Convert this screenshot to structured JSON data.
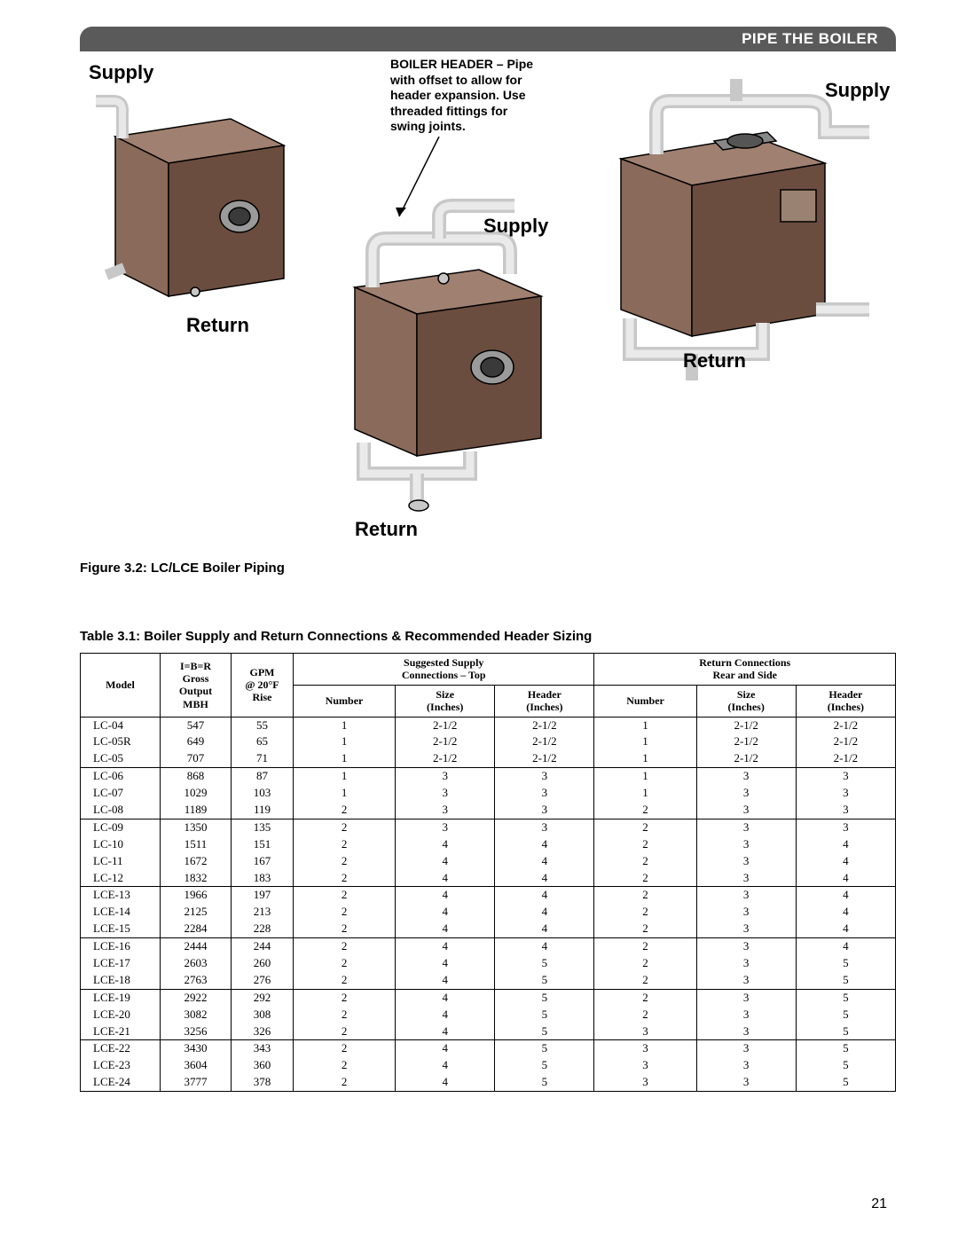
{
  "header": {
    "title": "PIPE THE BOILER"
  },
  "figure": {
    "caption": "Figure 3.2: LC/LCE Boiler Piping",
    "labels": {
      "supply": "Supply",
      "return": "Return",
      "callout_title": "BOILER HEADER –",
      "callout_body": "Pipe with offset to allow for header expansion. Use threaded fittings for swing joints."
    },
    "colors": {
      "boiler_body": "#8a6a5a",
      "boiler_shadow": "#6b4d3f",
      "boiler_top": "#a08070",
      "pipe": "#d8d8d8",
      "pipe_shadow": "#b0b0b0",
      "outline": "#000000"
    }
  },
  "table": {
    "caption": "Table 3.1: Boiler Supply and Return Connections & Recommended Header Sizing",
    "head": {
      "model": "Model",
      "ibr_l1": "I=B=R",
      "ibr_l2": "Gross",
      "ibr_l3": "Output",
      "ibr_l4": "MBH",
      "gpm_l1": "GPM",
      "gpm_l2": "@ 20°F",
      "gpm_l3": "Rise",
      "supply_group": "Suggested Supply",
      "supply_group2": "Connections – Top",
      "return_group": "Return Connections",
      "return_group2": "Rear and Side",
      "number": "Number",
      "size_l1": "Size",
      "size_l2": "(Inches)",
      "header_l1": "Header",
      "header_l2": "(Inches)"
    },
    "groups": [
      [
        [
          "LC-04",
          "547",
          "55",
          "1",
          "2-1/2",
          "2-1/2",
          "1",
          "2-1/2",
          "2-1/2"
        ],
        [
          "LC-05R",
          "649",
          "65",
          "1",
          "2-1/2",
          "2-1/2",
          "1",
          "2-1/2",
          "2-1/2"
        ],
        [
          "LC-05",
          "707",
          "71",
          "1",
          "2-1/2",
          "2-1/2",
          "1",
          "2-1/2",
          "2-1/2"
        ]
      ],
      [
        [
          "LC-06",
          "868",
          "87",
          "1",
          "3",
          "3",
          "1",
          "3",
          "3"
        ],
        [
          "LC-07",
          "1029",
          "103",
          "1",
          "3",
          "3",
          "1",
          "3",
          "3"
        ],
        [
          "LC-08",
          "1189",
          "119",
          "2",
          "3",
          "3",
          "2",
          "3",
          "3"
        ]
      ],
      [
        [
          "LC-09",
          "1350",
          "135",
          "2",
          "3",
          "3",
          "2",
          "3",
          "3"
        ],
        [
          "LC-10",
          "1511",
          "151",
          "2",
          "4",
          "4",
          "2",
          "3",
          "4"
        ],
        [
          "LC-11",
          "1672",
          "167",
          "2",
          "4",
          "4",
          "2",
          "3",
          "4"
        ],
        [
          "LC-12",
          "1832",
          "183",
          "2",
          "4",
          "4",
          "2",
          "3",
          "4"
        ]
      ],
      [
        [
          "LCE-13",
          "1966",
          "197",
          "2",
          "4",
          "4",
          "2",
          "3",
          "4"
        ],
        [
          "LCE-14",
          "2125",
          "213",
          "2",
          "4",
          "4",
          "2",
          "3",
          "4"
        ],
        [
          "LCE-15",
          "2284",
          "228",
          "2",
          "4",
          "4",
          "2",
          "3",
          "4"
        ]
      ],
      [
        [
          "LCE-16",
          "2444",
          "244",
          "2",
          "4",
          "4",
          "2",
          "3",
          "4"
        ],
        [
          "LCE-17",
          "2603",
          "260",
          "2",
          "4",
          "5",
          "2",
          "3",
          "5"
        ],
        [
          "LCE-18",
          "2763",
          "276",
          "2",
          "4",
          "5",
          "2",
          "3",
          "5"
        ]
      ],
      [
        [
          "LCE-19",
          "2922",
          "292",
          "2",
          "4",
          "5",
          "2",
          "3",
          "5"
        ],
        [
          "LCE-20",
          "3082",
          "308",
          "2",
          "4",
          "5",
          "2",
          "3",
          "5"
        ],
        [
          "LCE-21",
          "3256",
          "326",
          "2",
          "4",
          "5",
          "3",
          "3",
          "5"
        ]
      ],
      [
        [
          "LCE-22",
          "3430",
          "343",
          "2",
          "4",
          "5",
          "3",
          "3",
          "5"
        ],
        [
          "LCE-23",
          "3604",
          "360",
          "2",
          "4",
          "5",
          "3",
          "3",
          "5"
        ],
        [
          "LCE-24",
          "3777",
          "378",
          "2",
          "4",
          "5",
          "3",
          "3",
          "5"
        ]
      ]
    ]
  },
  "page_number": "21"
}
